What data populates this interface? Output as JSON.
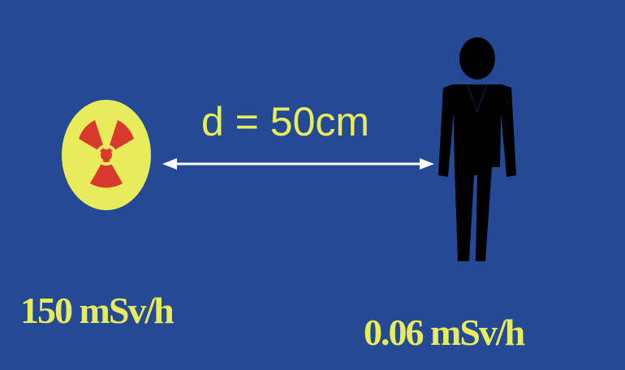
{
  "diagram": {
    "distance_label": "d = 50cm",
    "source_dose_label": "150 mSv/h",
    "person_dose_label": "0.06 mSv/h",
    "icons": {
      "source": "radiation-trefoil-icon",
      "receiver": "person-figure-icon",
      "connector": "double-arrow"
    },
    "colors": {
      "background": "#244a96",
      "text": "#e8ec5a",
      "trefoil_disc": "#e8ec5a",
      "trefoil_blades": "#d83a2e",
      "arrow": "#ffffff",
      "person": "#000000"
    }
  }
}
